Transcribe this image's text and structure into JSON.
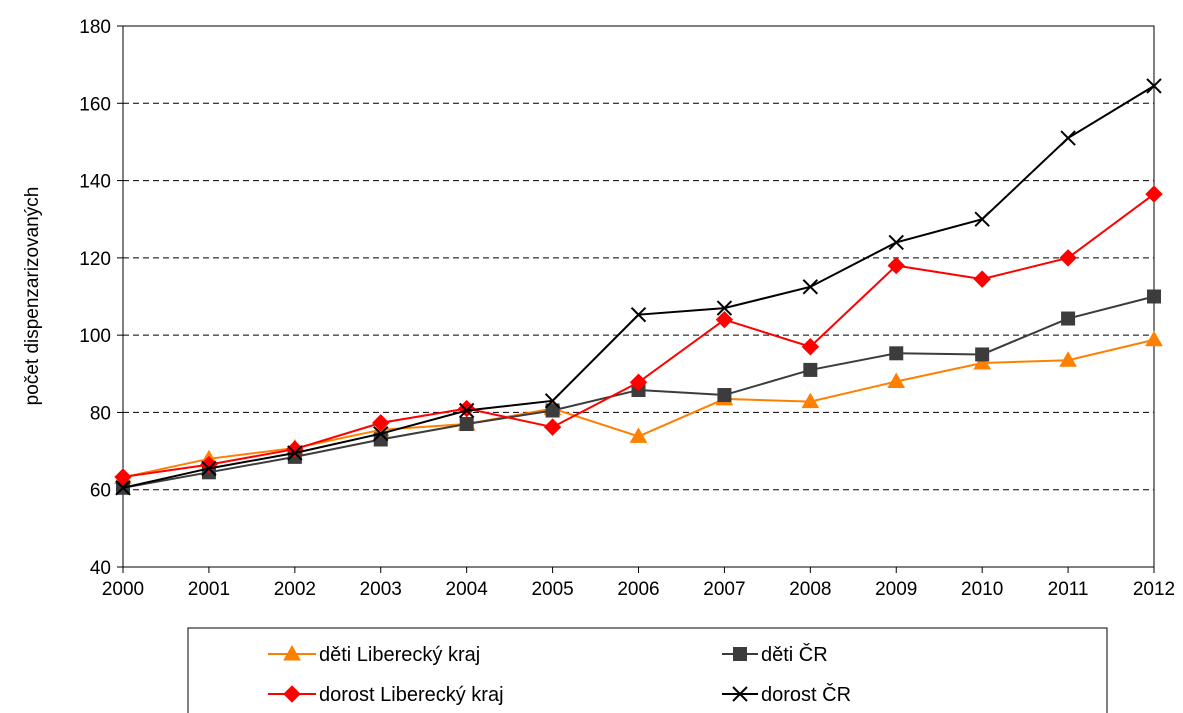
{
  "chart_data": {
    "type": "line",
    "title": "",
    "xlabel": "",
    "ylabel": "počet dispenzarizovaných",
    "ylim": [
      40,
      180
    ],
    "yticks": [
      40,
      60,
      80,
      100,
      120,
      140,
      160,
      180
    ],
    "grid": "horizontal dashed",
    "legend_position": "bottom",
    "categories": [
      "2000",
      "2001",
      "2002",
      "2003",
      "2004",
      "2005",
      "2006",
      "2007",
      "2008",
      "2009",
      "2010",
      "2011",
      "2012"
    ],
    "series": [
      {
        "name": "děti Liberecký kraj",
        "color": "#FF8000",
        "marker": "triangle",
        "values": [
          63.2,
          68.0,
          70.8,
          75.5,
          77.0,
          81.0,
          73.8,
          83.5,
          82.8,
          88.0,
          92.8,
          93.5,
          98.8
        ]
      },
      {
        "name": "děti ČR",
        "color": "#3C3C3C",
        "marker": "square",
        "values": [
          60.5,
          64.5,
          68.5,
          73.0,
          77.0,
          80.5,
          85.8,
          84.5,
          91.0,
          95.3,
          95.0,
          104.3,
          110.0
        ]
      },
      {
        "name": "dorost Liberecký kraj",
        "color": "#FF0000",
        "marker": "diamond",
        "values": [
          63.3,
          66.5,
          70.5,
          77.3,
          81.0,
          76.2,
          87.8,
          104.0,
          97.0,
          118.0,
          114.5,
          120.0,
          136.5
        ]
      },
      {
        "name": "dorost ČR",
        "color": "#000000",
        "marker": "x",
        "values": [
          60.5,
          65.5,
          69.5,
          74.5,
          80.5,
          83.0,
          105.3,
          107.0,
          112.5,
          124.0,
          130.0,
          151.0,
          164.5
        ]
      }
    ]
  }
}
